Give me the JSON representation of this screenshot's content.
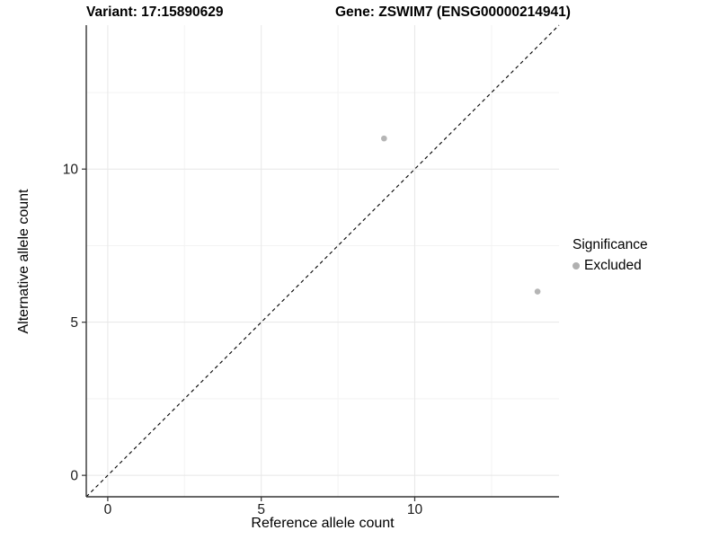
{
  "titles": {
    "variant": "Variant: 17:15890629",
    "gene": "Gene: ZSWIM7 (ENSG00000214941)"
  },
  "legend": {
    "title": "Significance",
    "entries": [
      {
        "label": "Excluded",
        "color": "#b0b0b0"
      }
    ]
  },
  "chart_data": {
    "type": "scatter",
    "title_left": "Variant: 17:15890629",
    "title_right": "Gene: ZSWIM7 (ENSG00000214941)",
    "xlabel": "Reference allele count",
    "ylabel": "Alternative allele count",
    "xlim": [
      -0.7,
      14.7
    ],
    "ylim": [
      -0.7,
      14.7
    ],
    "xticks": [
      0,
      5,
      10
    ],
    "yticks": [
      0,
      5,
      10
    ],
    "minor_gridlines_x": [
      2.5,
      7.5,
      12.5
    ],
    "minor_gridlines_y": [
      2.5,
      7.5,
      12.5
    ],
    "grid": true,
    "legend_position": "right",
    "series": [
      {
        "name": "Excluded",
        "color": "#b5b5b5",
        "points": [
          {
            "x": 9,
            "y": 11
          },
          {
            "x": 14,
            "y": 6
          }
        ]
      }
    ],
    "reference_line": {
      "type": "identity",
      "style": "dashed",
      "color": "#000000",
      "from": [
        -0.7,
        -0.7
      ],
      "to": [
        14.7,
        14.7
      ]
    }
  },
  "colors": {
    "point": "#b5b5b5",
    "grid_major": "#e7e7e7",
    "grid_minor": "#f3f3f3",
    "axis_line": "#333333",
    "tick_text": "#1a1a1a"
  }
}
